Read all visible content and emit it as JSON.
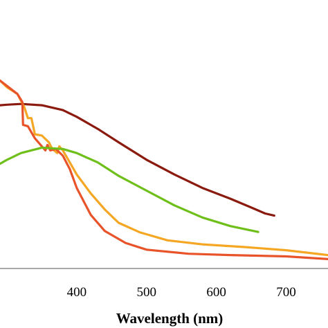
{
  "chart_data": {
    "type": "line",
    "title": "",
    "xlabel": "Wavelength (nm)",
    "ylabel": "",
    "xlim": [
      290,
      760
    ],
    "ylim": [
      0,
      1
    ],
    "x_ticks": [
      400,
      500,
      600,
      700
    ],
    "grid": false,
    "legend": "none",
    "series": [
      {
        "color": "#8b1a0e",
        "points": [
          [
            290,
            0.608
          ],
          [
            300,
            0.61
          ],
          [
            320,
            0.613
          ],
          [
            350,
            0.608
          ],
          [
            380,
            0.59
          ],
          [
            400,
            0.565
          ],
          [
            430,
            0.52
          ],
          [
            460,
            0.47
          ],
          [
            500,
            0.405
          ],
          [
            540,
            0.35
          ],
          [
            580,
            0.3
          ],
          [
            620,
            0.26
          ],
          [
            650,
            0.227
          ],
          [
            670,
            0.205
          ],
          [
            683,
            0.197
          ]
        ]
      },
      {
        "color": "#f5a623",
        "points": [
          [
            290,
            0.7
          ],
          [
            300,
            0.675
          ],
          [
            315,
            0.65
          ],
          [
            325,
            0.6
          ],
          [
            330,
            0.56
          ],
          [
            335,
            0.56
          ],
          [
            340,
            0.5
          ],
          [
            350,
            0.495
          ],
          [
            360,
            0.47
          ],
          [
            365,
            0.445
          ],
          [
            372,
            0.43
          ],
          [
            375,
            0.455
          ],
          [
            380,
            0.44
          ],
          [
            400,
            0.35
          ],
          [
            420,
            0.28
          ],
          [
            440,
            0.22
          ],
          [
            460,
            0.17
          ],
          [
            490,
            0.135
          ],
          [
            530,
            0.105
          ],
          [
            580,
            0.09
          ],
          [
            640,
            0.08
          ],
          [
            700,
            0.068
          ],
          [
            760,
            0.05
          ]
        ]
      },
      {
        "color": "#e8532a",
        "points": [
          [
            290,
            0.7
          ],
          [
            300,
            0.68
          ],
          [
            315,
            0.65
          ],
          [
            322,
            0.62
          ],
          [
            323,
            0.535
          ],
          [
            330,
            0.53
          ],
          [
            340,
            0.485
          ],
          [
            350,
            0.455
          ],
          [
            355,
            0.44
          ],
          [
            358,
            0.46
          ],
          [
            362,
            0.44
          ],
          [
            370,
            0.445
          ],
          [
            380,
            0.42
          ],
          [
            390,
            0.37
          ],
          [
            400,
            0.3
          ],
          [
            420,
            0.2
          ],
          [
            440,
            0.14
          ],
          [
            470,
            0.095
          ],
          [
            500,
            0.07
          ],
          [
            560,
            0.055
          ],
          [
            620,
            0.05
          ],
          [
            700,
            0.045
          ],
          [
            760,
            0.035
          ]
        ]
      },
      {
        "color": "#6fbf1a",
        "points": [
          [
            290,
            0.39
          ],
          [
            300,
            0.405
          ],
          [
            320,
            0.43
          ],
          [
            350,
            0.45
          ],
          [
            380,
            0.445
          ],
          [
            400,
            0.43
          ],
          [
            430,
            0.395
          ],
          [
            460,
            0.345
          ],
          [
            500,
            0.29
          ],
          [
            540,
            0.235
          ],
          [
            580,
            0.19
          ],
          [
            620,
            0.158
          ],
          [
            660,
            0.136
          ]
        ]
      }
    ]
  }
}
